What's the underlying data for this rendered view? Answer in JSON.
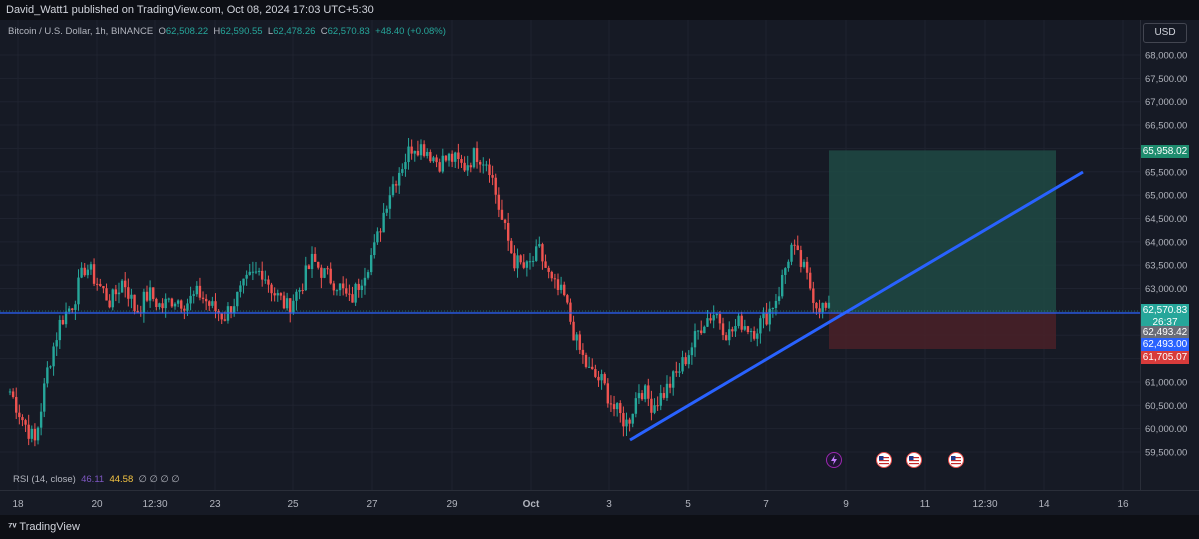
{
  "header": {
    "published": "David_Watt1 published on TradingView.com, Oct 08, 2024 17:03 UTC+5:30"
  },
  "legend": {
    "symbol": "Bitcoin / U.S. Dollar, 1h, BINANCE",
    "o_label": "O",
    "o": "62,508.22",
    "h_label": "H",
    "h": "62,590.55",
    "l_label": "L",
    "l": "62,478.26",
    "c_label": "C",
    "c": "62,570.83",
    "change": "+48.40 (+0.08%)"
  },
  "currency_button": "USD",
  "rsi": {
    "label": "RSI (14, close)",
    "v1": "46.11",
    "v2": "44.58",
    "extra": "∅ ∅ ∅ ∅"
  },
  "price_axis": {
    "ticks": [
      "68,000.00",
      "67,500.00",
      "67,000.00",
      "66,500.00",
      "66,000.00",
      "65,500.00",
      "65,000.00",
      "64,500.00",
      "64,000.00",
      "63,500.00",
      "63,000.00",
      "62,500.00",
      "62,000.00",
      "61,500.00",
      "61,000.00",
      "60,500.00",
      "60,000.00",
      "59,500.00"
    ]
  },
  "price_tags": {
    "target": "65,958.02",
    "last": "62,570.83",
    "countdown": "26:37",
    "entry": "62,493.42",
    "hline": "62,493.00",
    "stop": "61,705.07"
  },
  "time_axis": {
    "labels": [
      "18",
      "20",
      "12:30",
      "23",
      "25",
      "27",
      "29",
      "Oct",
      "3",
      "5",
      "7",
      "9",
      "11",
      "12:30",
      "14",
      "16"
    ]
  },
  "colors": {
    "bg": "#161a25",
    "up": "#26a69a",
    "down": "#ef5350",
    "trendline": "#2962ff",
    "target_zone": "#1f4a44",
    "stop_zone": "#4a2128"
  },
  "icons": {
    "event_flash": "flash-icon",
    "flags": [
      "us-flag-icon",
      "us-flag-icon",
      "us-flag-icon"
    ]
  },
  "footer": {
    "brand": "TradingView"
  },
  "chart_data": {
    "type": "candlestick",
    "symbol": "BTCUSD",
    "interval": "1h",
    "ylim": [
      59300,
      68300
    ],
    "closes": [
      60800,
      60200,
      59700,
      61300,
      62300,
      62700,
      63500,
      63100,
      62700,
      63200,
      62500,
      62900,
      62600,
      62800,
      62700,
      62900,
      62600,
      62400,
      62800,
      63200,
      63400,
      62900,
      62600,
      63000,
      63600,
      63300,
      63100,
      62700,
      63300,
      63900,
      65000,
      65600,
      66100,
      66000,
      65700,
      65800,
      65600,
      65900,
      65700,
      64500,
      63600,
      63400,
      63800,
      63100,
      62800,
      61800,
      61200,
      61000,
      60400,
      60100,
      60900,
      60500,
      60800,
      61200,
      61700,
      62300,
      62500,
      62000,
      62300,
      62100,
      62400,
      62900,
      63900,
      63400,
      62700,
      62500
    ]
  }
}
